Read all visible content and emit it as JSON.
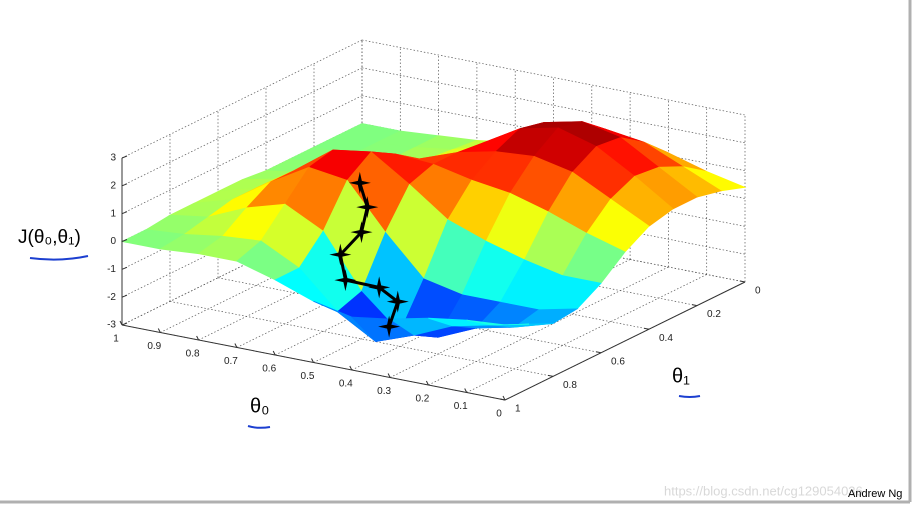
{
  "chart_data": {
    "type": "surface3d",
    "xlabel": "θ₀",
    "ylabel": "θ₁",
    "zlabel": "J(θ₀,θ₁)",
    "credit": "Andrew Ng",
    "watermark": "https://blog.csdn.net/cg129054036",
    "colormap": "jet",
    "grid": true,
    "x": [
      0,
      0.1,
      0.2,
      0.3,
      0.4,
      0.5,
      0.6,
      0.7,
      0.8,
      0.9,
      1
    ],
    "y": [
      0,
      0.1,
      0.2,
      0.3,
      0.4,
      0.5,
      0.6,
      0.7,
      0.8,
      0.9,
      1
    ],
    "z": [
      [
        0.4,
        0.7,
        0.9,
        0.9,
        0.7,
        0.2,
        -0.5,
        -1.0,
        -1.1,
        -0.7,
        -0.3
      ],
      [
        0.7,
        1.3,
        1.7,
        1.8,
        1.4,
        0.6,
        -0.5,
        -1.3,
        -1.5,
        -1.0,
        -0.4
      ],
      [
        1.1,
        1.9,
        2.5,
        2.6,
        2.1,
        1.1,
        -0.2,
        -1.3,
        -1.8,
        -1.3,
        -0.6
      ],
      [
        1.2,
        2.1,
        2.8,
        3.0,
        2.4,
        1.5,
        0.2,
        -1.3,
        -2.4,
        -1.9,
        -0.9
      ],
      [
        1.1,
        1.9,
        2.5,
        2.7,
        2.3,
        1.7,
        0.7,
        -1.0,
        -2.5,
        -2.4,
        -1.1
      ],
      [
        0.7,
        1.3,
        1.7,
        1.9,
        2.0,
        2.0,
        1.7,
        0.4,
        -1.3,
        -1.6,
        -0.8
      ],
      [
        0.4,
        0.7,
        0.9,
        1.1,
        1.5,
        2.1,
        2.6,
        2.0,
        0.6,
        -0.3,
        -0.3
      ],
      [
        0.2,
        0.3,
        0.4,
        0.6,
        1.0,
        1.7,
        2.4,
        2.2,
        1.3,
        0.4,
        0.1
      ],
      [
        0.1,
        0.1,
        0.1,
        0.2,
        0.5,
        1.0,
        1.4,
        1.4,
        0.9,
        0.3,
        0.1
      ],
      [
        0.0,
        0.0,
        0.0,
        0.1,
        0.2,
        0.4,
        0.5,
        0.5,
        0.3,
        0.1,
        0.0
      ],
      [
        0,
        0,
        0,
        0,
        0,
        0.1,
        0.1,
        0.1,
        0.1,
        0,
        0
      ]
    ],
    "path": {
      "color": "#000000",
      "x": [
        0.567,
        0.535,
        0.525,
        0.574,
        0.542,
        0.504,
        0.468,
        0.453
      ],
      "y": [
        0.7,
        0.72,
        0.76,
        0.77,
        0.8,
        0.72,
        0.7,
        0.76
      ],
      "z": [
        2.0,
        1.3,
        0.6,
        -0.3,
        -1.0,
        -1.5,
        -2.0,
        -2.6
      ]
    },
    "xlim": [
      0,
      1
    ],
    "xticks": [
      0,
      0.1,
      0.2,
      0.3,
      0.4,
      0.5,
      0.6,
      0.7,
      0.8,
      0.9,
      1
    ],
    "ylim": [
      0,
      1
    ],
    "yticks": [
      0,
      0.2,
      0.4,
      0.6,
      0.8,
      1
    ],
    "zlim": [
      -3,
      3
    ],
    "zticks": [
      -3,
      -2,
      -1,
      0,
      1,
      2,
      3
    ]
  }
}
